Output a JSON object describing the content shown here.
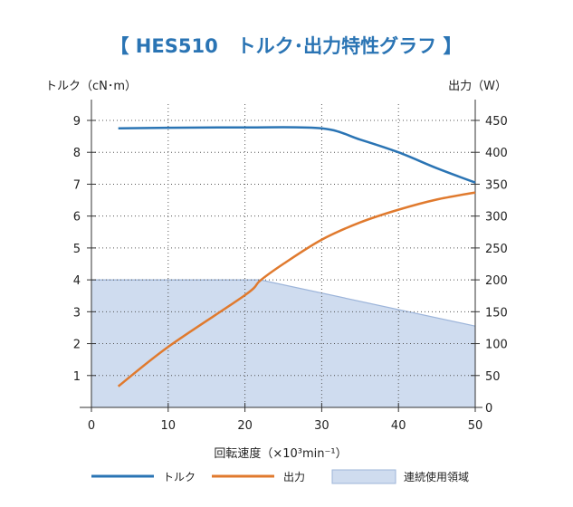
{
  "chart_data": {
    "type": "line",
    "title": "【 HES510　トルク･出力特性グラフ 】",
    "xlabel": "回転速度（×10³min⁻¹）",
    "ylabel_left": "トルク（cN･m）",
    "ylabel_right": "出力（W）",
    "xlim": [
      0,
      50
    ],
    "ylim_left": [
      0,
      9
    ],
    "ylim_right": [
      0,
      450
    ],
    "x_ticks": [
      "0",
      "10",
      "20",
      "30",
      "40",
      "50"
    ],
    "y_left_ticks": [
      "1",
      "2",
      "3",
      "4",
      "5",
      "6",
      "7",
      "8",
      "9"
    ],
    "y_right_ticks": [
      "0",
      "50",
      "100",
      "150",
      "200",
      "250",
      "300",
      "350",
      "400",
      "450"
    ],
    "grid": true,
    "legend_placement": "bottom",
    "series": [
      {
        "name": "トルク",
        "axis": "left",
        "color": "#2a74b4",
        "x": [
          3.5,
          10,
          20,
          30,
          35,
          40,
          45,
          50
        ],
        "y": [
          8.75,
          8.77,
          8.78,
          8.75,
          8.4,
          8.0,
          7.5,
          7.05
        ]
      },
      {
        "name": "出力",
        "axis": "right",
        "color": "#e07a2e",
        "x": [
          3.5,
          10,
          20,
          22,
          25,
          30,
          35,
          40,
          45,
          50
        ],
        "y": [
          33,
          95,
          176,
          199,
          225,
          263,
          290,
          310,
          326,
          337
        ]
      },
      {
        "name": "連続使用領域",
        "axis": "left",
        "type": "area",
        "color": "#cfdcef",
        "x": [
          0,
          22,
          50
        ],
        "y": [
          4,
          4,
          2.55
        ]
      }
    ]
  }
}
